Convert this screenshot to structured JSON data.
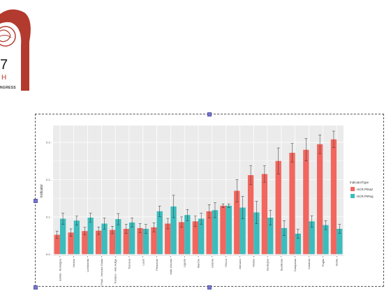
{
  "logo": {
    "number": "7",
    "letter": "H",
    "caption": "NGRESS"
  },
  "colors": {
    "hcr_pinaz": "#f1665e",
    "hcr_pireg": "#3cbcbc",
    "panel_bg": "#ebebeb",
    "grid": "#ffffff",
    "logo_red": "#b33a2e"
  },
  "chart_data": {
    "type": "bar",
    "title": "",
    "xlabel": "",
    "ylabel": "Indicator",
    "ylim": [
      -0.005,
      0.345
    ],
    "yticks": [
      0.0,
      0.1,
      0.2,
      0.3
    ],
    "ytick_labels": [
      "0.0 -",
      "0.1 -",
      "0.2 -",
      "0.3 -"
    ],
    "grid": true,
    "legend_position": "right",
    "legend_title": "IndicatorType",
    "categories": [
      "Emilia - Romagna",
      "Veneto",
      "Lombardia",
      "Friuli - Venezia Giulia",
      "Trentino - Alto Adige",
      "Toscana",
      "Lazio",
      "Piemonte",
      "Valle d'Aosta",
      "Liguria",
      "Marche",
      "Umbria",
      "ITALIA",
      "Abruzzo",
      "Molise",
      "Sardegna",
      "Basilicata",
      "Campania",
      "Calabria",
      "Puglia",
      "Sicilia"
    ],
    "series": [
      {
        "name": "HCR.PINaz",
        "values": [
          0.052,
          0.058,
          0.062,
          0.063,
          0.065,
          0.068,
          0.07,
          0.072,
          0.082,
          0.086,
          0.088,
          0.115,
          0.13,
          0.17,
          0.212,
          0.215,
          0.25,
          0.272,
          0.28,
          0.295,
          0.308
        ],
        "errors": [
          0.01,
          0.01,
          0.01,
          0.01,
          0.01,
          0.012,
          0.012,
          0.012,
          0.014,
          0.014,
          0.014,
          0.018,
          0.005,
          0.03,
          0.025,
          0.022,
          0.035,
          0.025,
          0.03,
          0.025,
          0.022
        ]
      },
      {
        "name": "HCR.PIReg",
        "values": [
          0.095,
          0.09,
          0.098,
          0.082,
          0.094,
          0.085,
          0.068,
          0.115,
          0.128,
          0.105,
          0.095,
          0.118,
          0.13,
          0.125,
          0.112,
          0.098,
          0.07,
          0.055,
          0.088,
          0.078,
          0.068
        ]
      }
    ],
    "pireg_errors": [
      0.015,
      0.012,
      0.012,
      0.015,
      0.015,
      0.012,
      0.012,
      0.014,
      0.03,
      0.015,
      0.015,
      0.02,
      0.005,
      0.03,
      0.03,
      0.02,
      0.02,
      0.012,
      0.015,
      0.012,
      0.012
    ]
  }
}
